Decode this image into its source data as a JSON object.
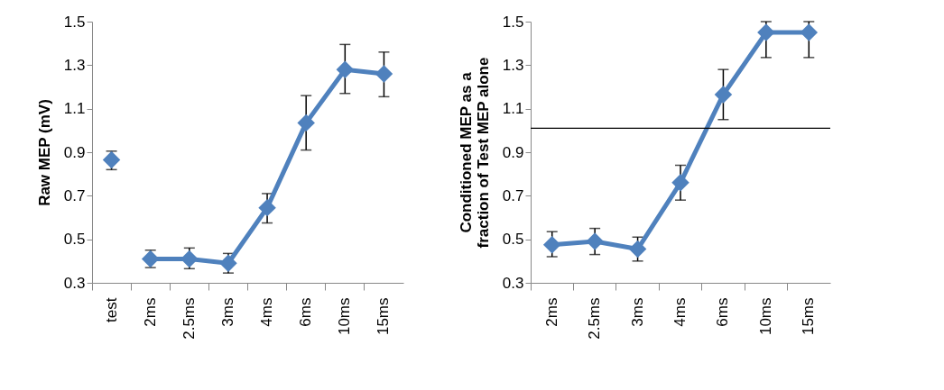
{
  "chart_data": [
    {
      "type": "line",
      "ylabel": "Raw MEP (mV)",
      "categories": [
        "test",
        "2ms",
        "2.5ms",
        "3ms",
        "4ms",
        "6ms",
        "10ms",
        "15ms"
      ],
      "ylim": [
        0.3,
        1.5
      ],
      "yticks": [
        0.3,
        0.5,
        0.7,
        0.9,
        1.1,
        1.3,
        1.5
      ],
      "grid": false,
      "marker": "diamond",
      "line_style": "solid",
      "series": [
        {
          "type": "scatter",
          "color": "#4f81bd",
          "values": [
            0.865,
            null,
            null,
            null,
            null,
            null,
            null,
            null
          ],
          "errors": [
            [
              0.82,
              0.905
            ],
            null,
            null,
            null,
            null,
            null,
            null,
            null
          ]
        },
        {
          "color": "#4f81bd",
          "values": [
            null,
            0.41,
            0.41,
            0.39,
            0.645,
            1.035,
            1.28,
            1.26
          ],
          "errors": [
            null,
            [
              0.37,
              0.45
            ],
            [
              0.365,
              0.46
            ],
            [
              0.345,
              0.435
            ],
            [
              0.575,
              0.71
            ],
            [
              0.91,
              1.16
            ],
            [
              1.17,
              1.395
            ],
            [
              1.155,
              1.36
            ]
          ]
        }
      ]
    },
    {
      "type": "line",
      "ylabel": "Conditioned MEP as a fraction of Test MEP alone",
      "categories": [
        "2ms",
        "2.5ms",
        "3ms",
        "4ms",
        "6ms",
        "10ms",
        "15ms"
      ],
      "ylim": [
        0.3,
        1.5
      ],
      "yticks": [
        0.3,
        0.5,
        0.7,
        0.9,
        1.1,
        1.3,
        1.5
      ],
      "grid": false,
      "marker": "diamond",
      "line_style": "solid",
      "ref_lines": [
        {
          "axis": "y",
          "value": 1.01,
          "color": "#000000"
        }
      ],
      "series": [
        {
          "color": "#4f81bd",
          "values": [
            0.475,
            0.49,
            0.455,
            0.76,
            1.165,
            1.45,
            1.45
          ],
          "errors": [
            [
              0.42,
              0.535
            ],
            [
              0.43,
              0.55
            ],
            [
              0.4,
              0.51
            ],
            [
              0.68,
              0.84
            ],
            [
              1.05,
              1.28
            ],
            [
              1.335,
              1.5
            ],
            [
              1.335,
              1.5
            ]
          ]
        }
      ]
    }
  ]
}
